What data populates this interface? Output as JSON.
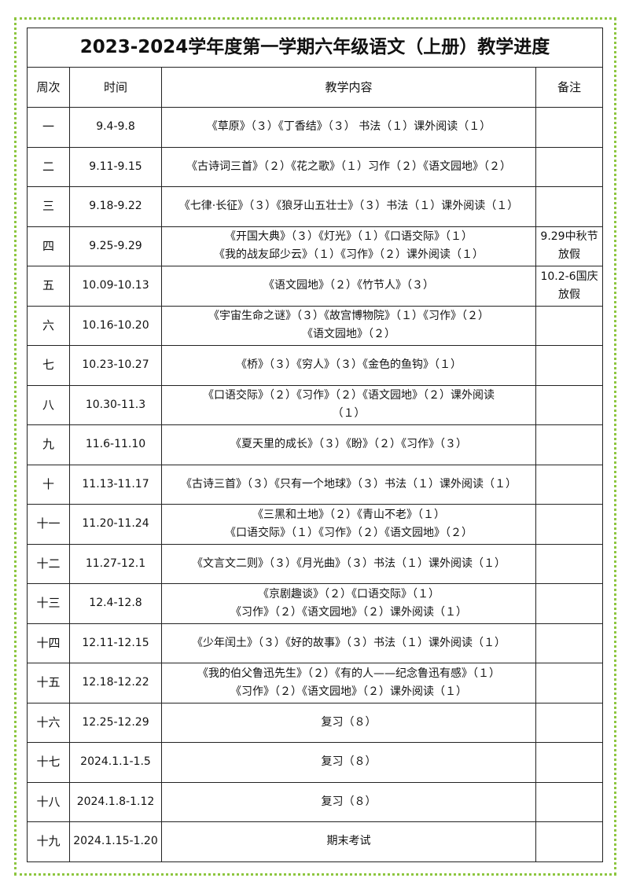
{
  "title": "2023-2024学年度第一学期六年级语文（上册）教学进度",
  "headers": {
    "week": "周次",
    "time": "时间",
    "content": "教学内容",
    "note": "备注"
  },
  "border_color": "#8dc63f",
  "rows": [
    {
      "week": "一",
      "time": "9.4-9.8",
      "content": [
        "《草原》（３）《丁香结》（３） 书法（１）课外阅读（１）"
      ],
      "note": ""
    },
    {
      "week": "二",
      "time": "9.11-9.15",
      "content": [
        "《古诗词三首》（２）《花之歌》（１）习作（２）《语文园地》（２）"
      ],
      "note": ""
    },
    {
      "week": "三",
      "time": "9.18-9.22",
      "content": [
        "《七律·长征》（３）《狼牙山五壮士》（３）书法（１）课外阅读（１）"
      ],
      "note": ""
    },
    {
      "week": "四",
      "time": "9.25-9.29",
      "content": [
        "《开国大典》（３）《灯光》（１）《口语交际》（１）",
        "《我的战友邱少云》（１）《习作》（２）课外阅读（１）"
      ],
      "note": "9.29中秋节放假"
    },
    {
      "week": "五",
      "time": "10.09-10.13",
      "content": [
        "《语文园地》（２）《竹节人》（３）"
      ],
      "note": "10.2-6国庆放假"
    },
    {
      "week": "六",
      "time": "10.16-10.20",
      "content": [
        "《宇宙生命之谜》（３）《故宫博物院》（１）《习作》（２）",
        "《语文园地》（２）"
      ],
      "note": ""
    },
    {
      "week": "七",
      "time": "10.23-10.27",
      "content": [
        "《桥》（３）《穷人》（３）《金色的鱼钩》（１）"
      ],
      "note": ""
    },
    {
      "week": "八",
      "time": "10.30-11.3",
      "content": [
        "《口语交际》（２）《习作》（２）《语文园地》（２）课外阅读",
        "（１）"
      ],
      "note": ""
    },
    {
      "week": "九",
      "time": "11.6-11.10",
      "content": [
        "《夏天里的成长》（３）《盼》（２）《习作》（３）"
      ],
      "note": ""
    },
    {
      "week": "十",
      "time": "11.13-11.17",
      "content": [
        "《古诗三首》（３）《只有一个地球》（３）书法（１）课外阅读（１）"
      ],
      "note": ""
    },
    {
      "week": "十一",
      "time": "11.20-11.24",
      "content": [
        "《三黑和土地》（２）《青山不老》（１）",
        "《口语交际》（１）《习作》（２）《语文园地》（２）"
      ],
      "note": ""
    },
    {
      "week": "十二",
      "time": "11.27-12.1",
      "content": [
        "《文言文二则》（３）《月光曲》（３）书法（１）课外阅读（１）"
      ],
      "note": ""
    },
    {
      "week": "十三",
      "time": "12.4-12.8",
      "content": [
        "《京剧趣谈》（２）《口语交际》（１）",
        "《习作》（２）《语文园地》（２）课外阅读（１）"
      ],
      "note": ""
    },
    {
      "week": "十四",
      "time": "12.11-12.15",
      "content": [
        "《少年闰土》（３）《好的故事》（３）书法（１）课外阅读（１）"
      ],
      "note": ""
    },
    {
      "week": "十五",
      "time": "12.18-12.22",
      "content": [
        "《我的伯父鲁迅先生》（２）《有的人——纪念鲁迅有感》（１）",
        "《习作》（２）《语文园地》（２）课外阅读（１）"
      ],
      "note": ""
    },
    {
      "week": "十六",
      "time": "12.25-12.29",
      "content": [
        "复习（８）"
      ],
      "note": ""
    },
    {
      "week": "十七",
      "time": "2024.1.1-1.5",
      "content": [
        "复习（８）"
      ],
      "note": ""
    },
    {
      "week": "十八",
      "time": "2024.1.8-1.12",
      "content": [
        "复习（８）"
      ],
      "note": ""
    },
    {
      "week": "十九",
      "time": "2024.1.15-1.20",
      "content": [
        "期末考试"
      ],
      "note": ""
    }
  ]
}
